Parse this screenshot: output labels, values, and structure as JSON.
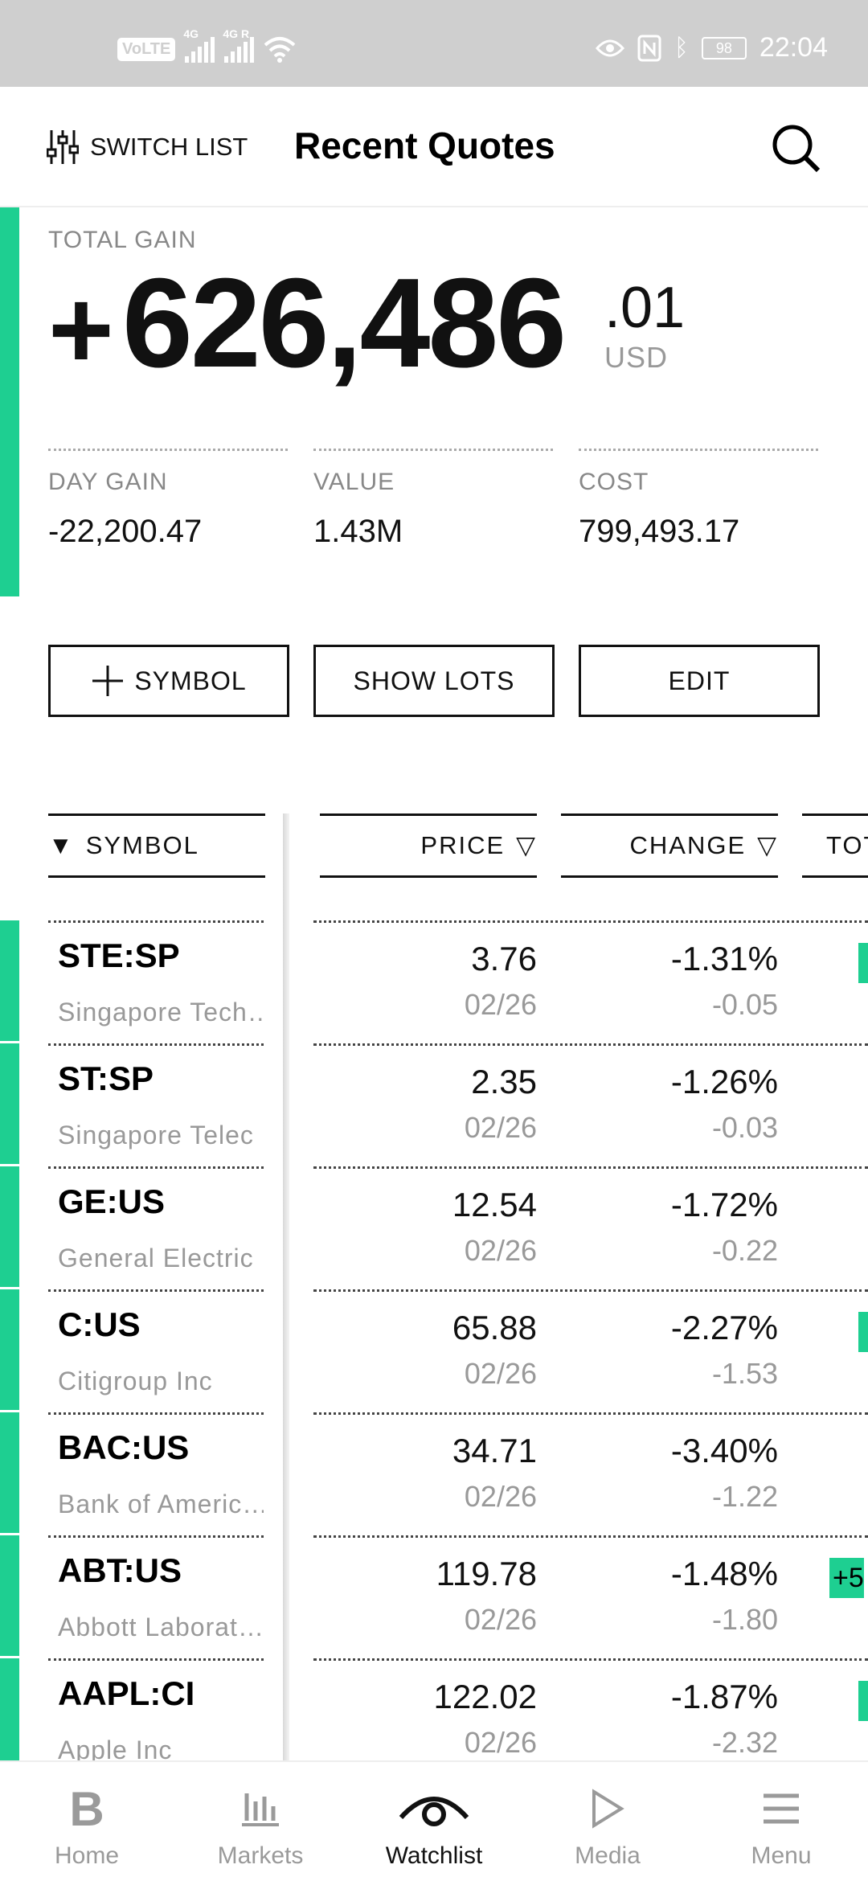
{
  "status_bar": {
    "volte": "VoLTE",
    "sig1": "4G",
    "sig2": "4G R",
    "battery": "98",
    "time": "22:04"
  },
  "header": {
    "switch_list": "SWITCH LIST",
    "title": "Recent Quotes"
  },
  "summary": {
    "total_gain_label": "TOTAL GAIN",
    "sign": "+",
    "total_gain": "626,486",
    "total_gain_cents": ".01",
    "currency": "USD",
    "metrics": [
      {
        "label": "DAY GAIN",
        "value": "-22,200.47"
      },
      {
        "label": "VALUE",
        "value": "1.43M"
      },
      {
        "label": "COST",
        "value": "799,493.17"
      }
    ]
  },
  "buttons": {
    "symbol": "SYMBOL",
    "show_lots": "SHOW LOTS",
    "edit": "EDIT"
  },
  "table": {
    "columns": {
      "symbol": "SYMBOL",
      "price": "PRICE",
      "change": "CHANGE",
      "total": "TOT"
    },
    "rows": [
      {
        "symbol": "STE:SP",
        "name": "Singapore Tech…",
        "price": "3.76",
        "date": "02/26",
        "change_pct": "-1.31%",
        "change": "-0.05",
        "total": ""
      },
      {
        "symbol": "ST:SP",
        "name": "Singapore Telec",
        "price": "2.35",
        "date": "02/26",
        "change_pct": "-1.26%",
        "change": "-0.03",
        "total": ""
      },
      {
        "symbol": "GE:US",
        "name": "General Electric",
        "price": "12.54",
        "date": "02/26",
        "change_pct": "-1.72%",
        "change": "-0.22",
        "total": ""
      },
      {
        "symbol": "C:US",
        "name": "Citigroup Inc",
        "price": "65.88",
        "date": "02/26",
        "change_pct": "-2.27%",
        "change": "-1.53",
        "total": ""
      },
      {
        "symbol": "BAC:US",
        "name": "Bank of Americ…",
        "price": "34.71",
        "date": "02/26",
        "change_pct": "-3.40%",
        "change": "-1.22",
        "total": ""
      },
      {
        "symbol": "ABT:US",
        "name": "Abbott Laborat…",
        "price": "119.78",
        "date": "02/26",
        "change_pct": "-1.48%",
        "change": "-1.80",
        "total": "+5"
      },
      {
        "symbol": "AAPL:CI",
        "name": "Apple Inc",
        "price": "122.02",
        "date": "02/26",
        "change_pct": "-1.87%",
        "change": "-2.32",
        "total": ""
      }
    ]
  },
  "nav": {
    "items": [
      {
        "label": "Home",
        "icon": "bloomberg-b-icon"
      },
      {
        "label": "Markets",
        "icon": "bar-chart-icon"
      },
      {
        "label": "Watchlist",
        "icon": "eye-icon"
      },
      {
        "label": "Media",
        "icon": "play-icon"
      },
      {
        "label": "Menu",
        "icon": "hamburger-icon"
      }
    ],
    "active": "Watchlist"
  },
  "colors": {
    "accent_green": "#1ecf91",
    "status_bar_bg": "#cfcfcf",
    "muted_text": "#999999"
  }
}
